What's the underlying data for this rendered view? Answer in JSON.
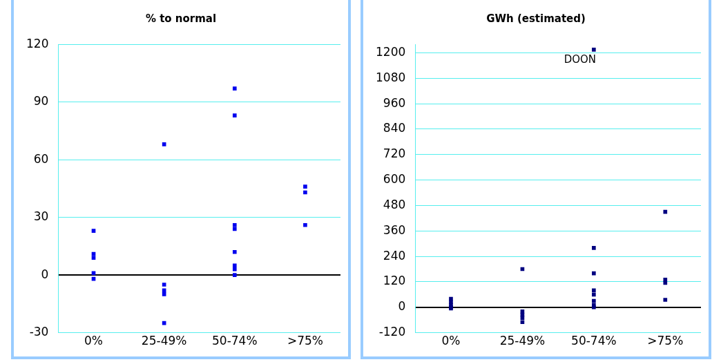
{
  "chart_data": [
    {
      "type": "scatter",
      "title": "% to normal",
      "categories": [
        "0%",
        "25-49%",
        "50-74%",
        ">75%"
      ],
      "series": [
        {
          "color": "#0000ee",
          "x": [
            "0%",
            "0%",
            "0%",
            "0%",
            "0%",
            "25-49%",
            "25-49%",
            "25-49%",
            "25-49%",
            "25-49%",
            "50-74%",
            "50-74%",
            "50-74%",
            "50-74%",
            "50-74%",
            "50-74%",
            "50-74%",
            "50-74%",
            ">75%",
            ">75%",
            ">75%"
          ],
          "values": [
            23,
            11,
            9,
            1,
            -2,
            68,
            -5,
            -8,
            -10,
            -25,
            97,
            83,
            26,
            24,
            12,
            5,
            3,
            0,
            46,
            43,
            26
          ]
        }
      ],
      "ylim": [
        -30,
        120
      ],
      "yticks": [
        -30,
        0,
        30,
        60,
        90,
        120
      ],
      "grid": "y",
      "marker": "square",
      "legend": false
    },
    {
      "type": "scatter",
      "title": "GWh  (estimated)",
      "categories": [
        "0%",
        "25-49%",
        "50-74%",
        ">75%"
      ],
      "series": [
        {
          "color": "#000080",
          "x": [
            "0%",
            "0%",
            "0%",
            "0%",
            "0%",
            "25-49%",
            "25-49%",
            "25-49%",
            "25-49%",
            "25-49%",
            "50-74%",
            "50-74%",
            "50-74%",
            "50-74%",
            "50-74%",
            "50-74%",
            "50-74%",
            "50-74%",
            ">75%",
            ">75%",
            ">75%",
            ">75%"
          ],
          "values": [
            40,
            25,
            10,
            0,
            -5,
            180,
            -20,
            -35,
            -50,
            -70,
            1215,
            280,
            160,
            80,
            60,
            30,
            10,
            0,
            450,
            130,
            115,
            35
          ]
        }
      ],
      "annotations": [
        {
          "text": "DOON",
          "x": "50-74%",
          "y": 1215
        }
      ],
      "ylim": [
        -120,
        1240
      ],
      "yticks": [
        -120,
        0,
        120,
        240,
        360,
        480,
        600,
        720,
        840,
        960,
        1080,
        1200
      ],
      "grid": "y",
      "marker": "square",
      "legend": false
    }
  ]
}
